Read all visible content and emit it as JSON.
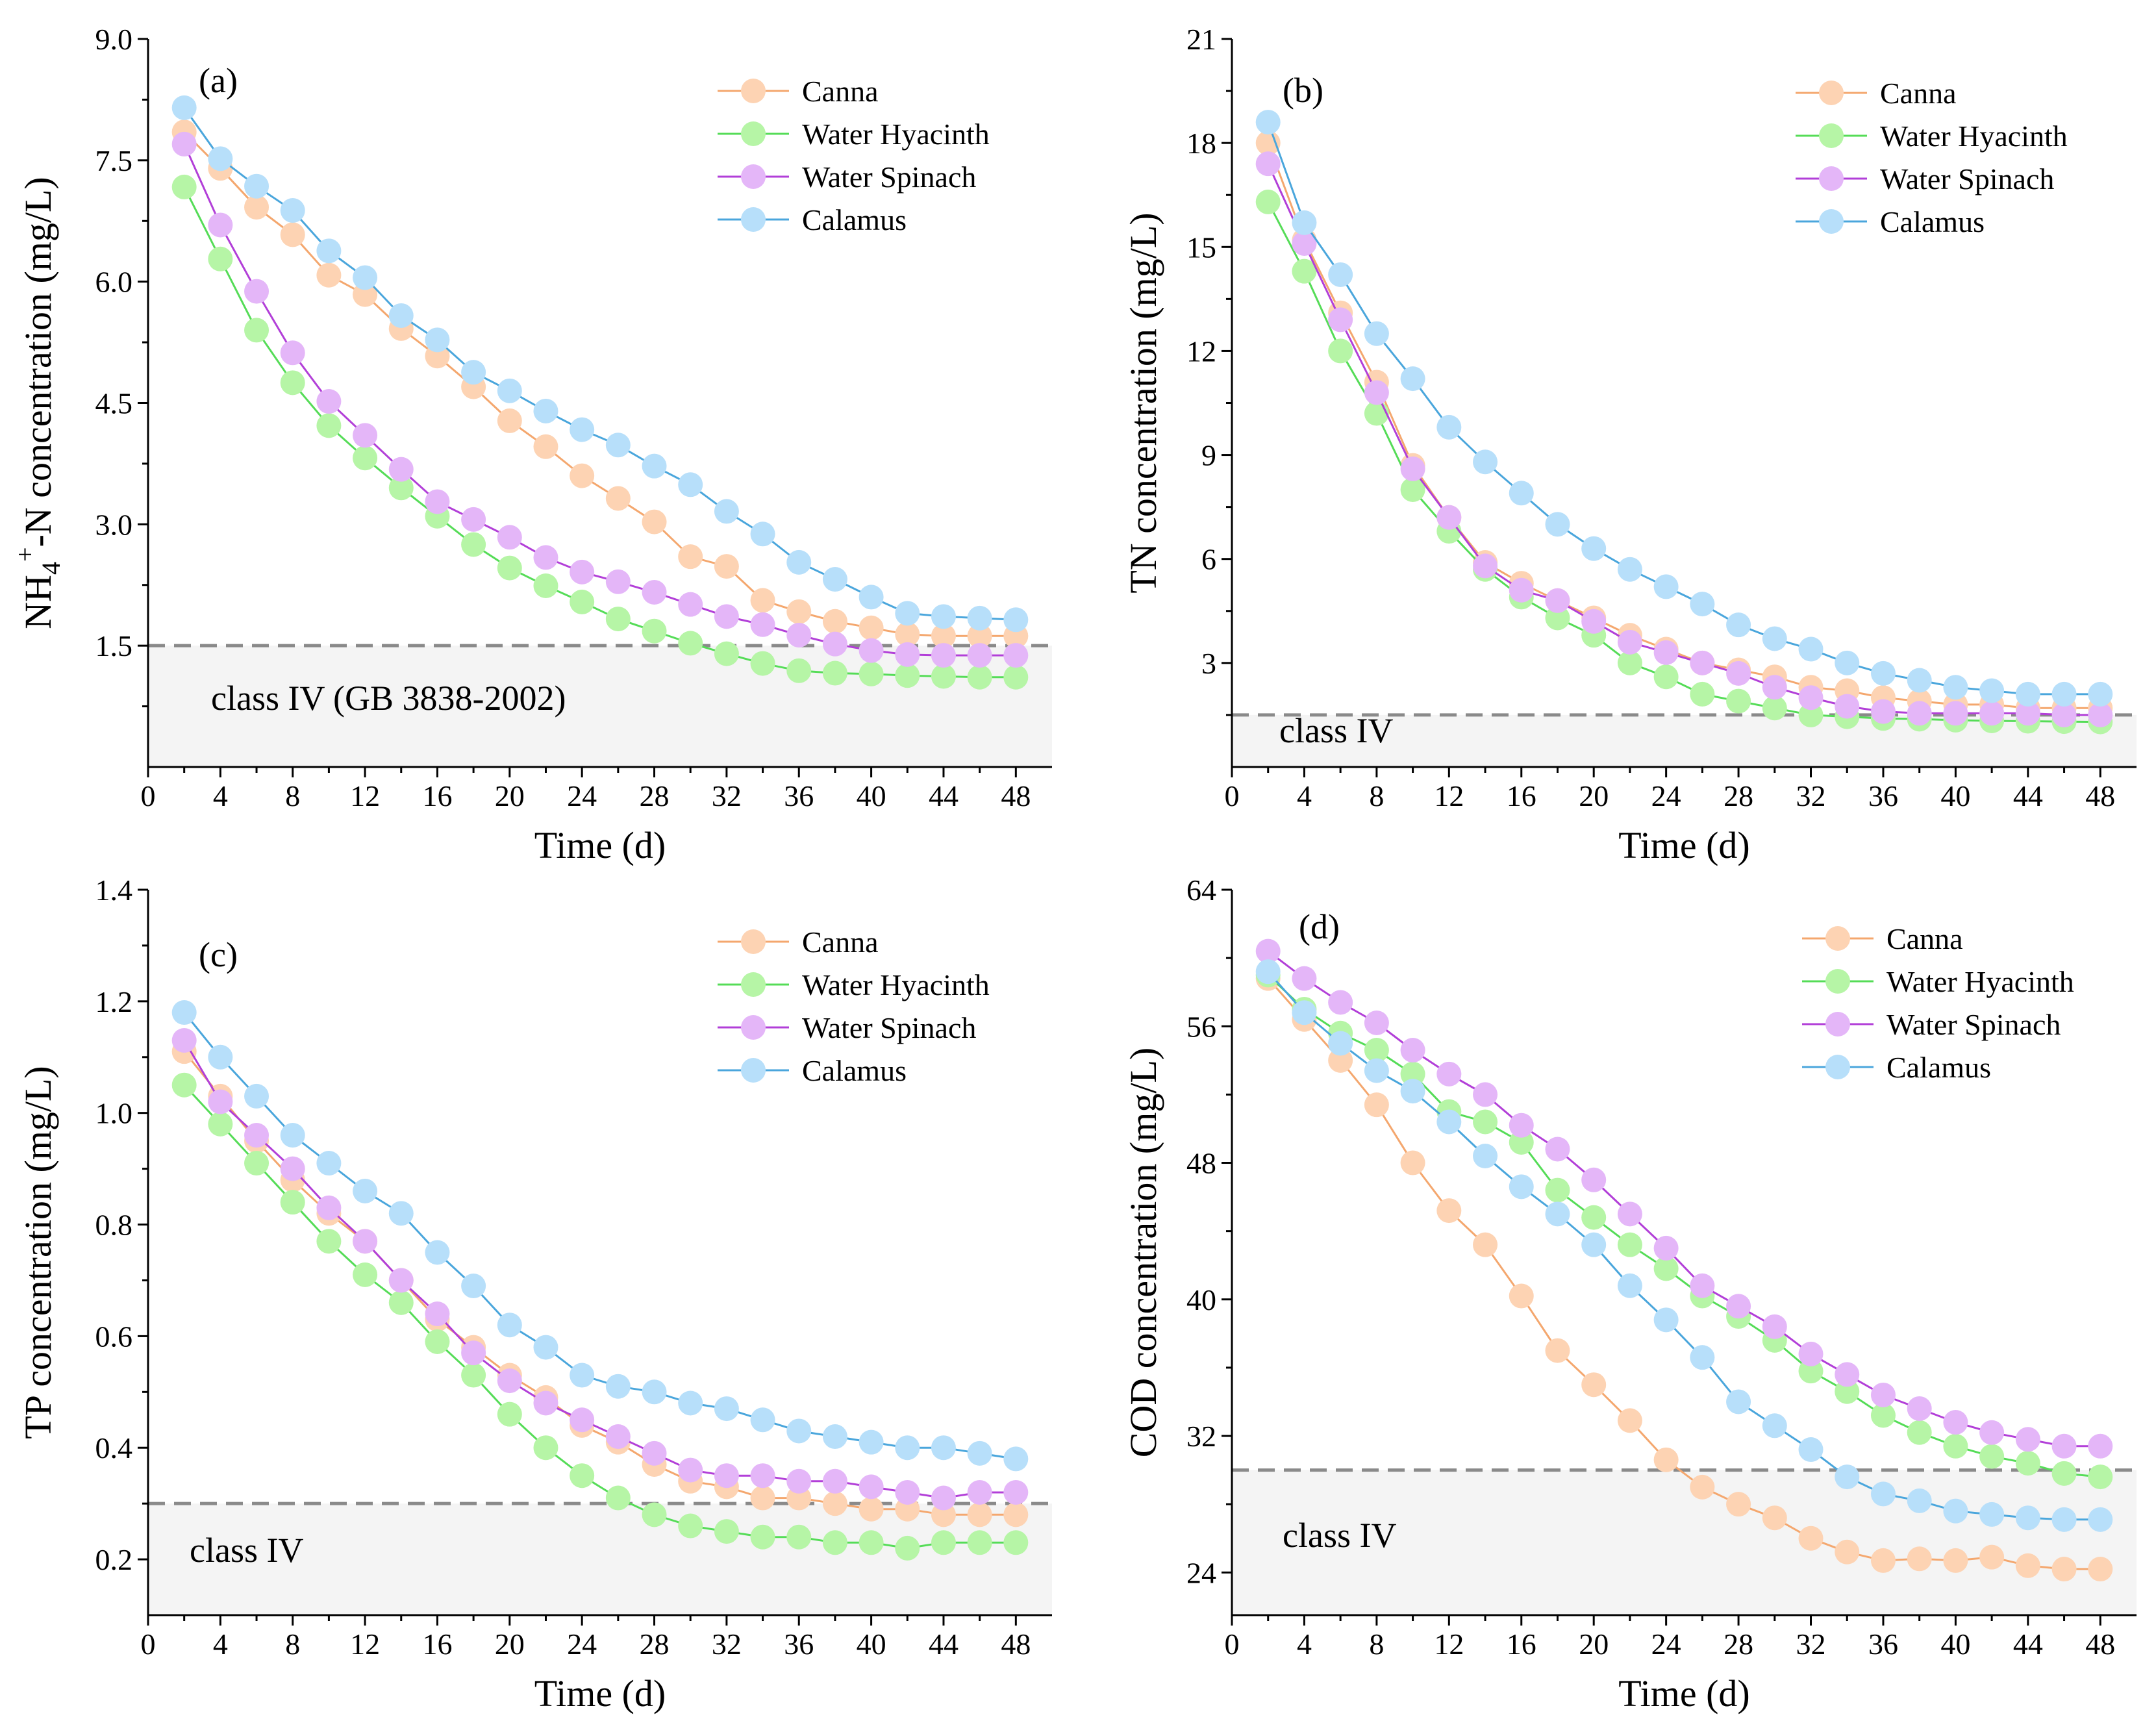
{
  "chart_data": [
    {
      "type": "line",
      "panel_label": "(a)",
      "ylabel_parts": {
        "main": "NH",
        "sub": "4",
        "sup": "+",
        "rest": "-N concentration (mg/L)"
      },
      "xlabel": "Time (d)",
      "xlim": [
        0,
        50
      ],
      "ylim": [
        0,
        9.0
      ],
      "xticks": [
        0,
        4,
        8,
        12,
        16,
        20,
        24,
        28,
        32,
        36,
        40,
        44,
        48
      ],
      "yticks": [
        "1.5",
        "3.0",
        "4.5",
        "6.0",
        "7.5",
        "9.0"
      ],
      "threshold": 1.5,
      "threshold_label": "class IV (GB 3838-2002)",
      "legend_position": "top-right",
      "x": [
        2,
        4,
        6,
        8,
        10,
        12,
        14,
        16,
        18,
        20,
        22,
        24,
        26,
        28,
        30,
        32,
        34,
        36,
        38,
        40,
        42,
        44,
        46,
        48
      ],
      "series": [
        {
          "name": "Canna",
          "values": [
            7.85,
            7.4,
            6.92,
            6.58,
            6.08,
            5.84,
            5.42,
            5.08,
            4.7,
            4.28,
            3.96,
            3.6,
            3.32,
            3.03,
            2.6,
            2.48,
            2.06,
            1.92,
            1.8,
            1.72,
            1.64,
            1.62,
            1.62,
            1.62
          ]
        },
        {
          "name": "Water Hyacinth",
          "values": [
            7.17,
            6.28,
            5.4,
            4.75,
            4.22,
            3.82,
            3.45,
            3.1,
            2.75,
            2.46,
            2.24,
            2.04,
            1.83,
            1.68,
            1.53,
            1.4,
            1.28,
            1.19,
            1.16,
            1.15,
            1.13,
            1.12,
            1.11,
            1.11
          ]
        },
        {
          "name": "Water Spinach",
          "values": [
            7.7,
            6.7,
            5.88,
            5.12,
            4.52,
            4.1,
            3.68,
            3.28,
            3.06,
            2.84,
            2.59,
            2.41,
            2.29,
            2.16,
            2.01,
            1.86,
            1.76,
            1.63,
            1.52,
            1.44,
            1.39,
            1.38,
            1.38,
            1.38
          ]
        },
        {
          "name": "Calamus",
          "values": [
            8.15,
            7.52,
            7.18,
            6.88,
            6.38,
            6.05,
            5.58,
            5.28,
            4.88,
            4.65,
            4.4,
            4.17,
            3.98,
            3.72,
            3.49,
            3.16,
            2.88,
            2.53,
            2.32,
            2.1,
            1.9,
            1.86,
            1.84,
            1.82
          ]
        }
      ]
    },
    {
      "type": "line",
      "panel_label": "(b)",
      "ylabel": "TN concentration (mg/L)",
      "xlabel": "Time (d)",
      "xlim": [
        0,
        50
      ],
      "ylim": [
        0,
        21
      ],
      "xticks": [
        0,
        4,
        8,
        12,
        16,
        20,
        24,
        28,
        32,
        36,
        40,
        44,
        48
      ],
      "yticks": [
        "3",
        "6",
        "9",
        "12",
        "15",
        "18",
        "21"
      ],
      "threshold": 1.5,
      "threshold_label": "class IV",
      "legend_position": "top-right",
      "x": [
        2,
        4,
        6,
        8,
        10,
        12,
        14,
        16,
        18,
        20,
        22,
        24,
        26,
        28,
        30,
        32,
        34,
        36,
        38,
        40,
        42,
        44,
        46,
        48
      ],
      "series": [
        {
          "name": "Canna",
          "values": [
            18.0,
            15.2,
            13.1,
            11.1,
            8.7,
            7.2,
            5.9,
            5.3,
            4.8,
            4.3,
            3.8,
            3.4,
            3.0,
            2.8,
            2.6,
            2.3,
            2.2,
            2.0,
            1.9,
            1.8,
            1.8,
            1.7,
            1.7,
            1.7
          ]
        },
        {
          "name": "Water Hyacinth",
          "values": [
            16.3,
            14.3,
            12.0,
            10.2,
            8.0,
            6.8,
            5.7,
            4.9,
            4.3,
            3.8,
            3.0,
            2.6,
            2.1,
            1.9,
            1.7,
            1.5,
            1.45,
            1.4,
            1.38,
            1.35,
            1.33,
            1.32,
            1.31,
            1.3
          ]
        },
        {
          "name": "Water Spinach",
          "values": [
            17.4,
            15.1,
            12.9,
            10.8,
            8.6,
            7.2,
            5.8,
            5.1,
            4.8,
            4.2,
            3.6,
            3.3,
            3.0,
            2.7,
            2.3,
            2.0,
            1.75,
            1.6,
            1.55,
            1.55,
            1.55,
            1.55,
            1.5,
            1.5
          ]
        },
        {
          "name": "Calamus",
          "values": [
            18.6,
            15.7,
            14.2,
            12.5,
            11.2,
            9.8,
            8.8,
            7.9,
            7.0,
            6.3,
            5.7,
            5.2,
            4.7,
            4.1,
            3.7,
            3.4,
            3.0,
            2.7,
            2.5,
            2.3,
            2.2,
            2.1,
            2.1,
            2.1
          ]
        }
      ]
    },
    {
      "type": "line",
      "panel_label": "(c)",
      "ylabel": "TP concentration (mg/L)",
      "xlabel": "Time (d)",
      "xlim": [
        0,
        50
      ],
      "ylim": [
        0.1,
        1.4
      ],
      "xticks": [
        0,
        4,
        8,
        12,
        16,
        20,
        24,
        28,
        32,
        36,
        40,
        44,
        48
      ],
      "yticks": [
        "0.2",
        "0.4",
        "0.6",
        "0.8",
        "1.0",
        "1.2",
        "1.4"
      ],
      "threshold": 0.3,
      "threshold_label": "class IV",
      "legend_position": "top-right",
      "x": [
        2,
        4,
        6,
        8,
        10,
        12,
        14,
        16,
        18,
        20,
        22,
        24,
        26,
        28,
        30,
        32,
        34,
        36,
        38,
        40,
        42,
        44,
        46,
        48
      ],
      "series": [
        {
          "name": "Canna",
          "values": [
            1.11,
            1.03,
            0.95,
            0.88,
            0.82,
            0.77,
            0.7,
            0.63,
            0.58,
            0.53,
            0.49,
            0.44,
            0.41,
            0.37,
            0.34,
            0.33,
            0.31,
            0.31,
            0.3,
            0.29,
            0.29,
            0.28,
            0.28,
            0.28
          ]
        },
        {
          "name": "Water Hyacinth",
          "values": [
            1.05,
            0.98,
            0.91,
            0.84,
            0.77,
            0.71,
            0.66,
            0.59,
            0.53,
            0.46,
            0.4,
            0.35,
            0.31,
            0.28,
            0.26,
            0.25,
            0.24,
            0.24,
            0.23,
            0.23,
            0.22,
            0.23,
            0.23,
            0.23
          ]
        },
        {
          "name": "Water Spinach",
          "values": [
            1.13,
            1.02,
            0.96,
            0.9,
            0.83,
            0.77,
            0.7,
            0.64,
            0.57,
            0.52,
            0.48,
            0.45,
            0.42,
            0.39,
            0.36,
            0.35,
            0.35,
            0.34,
            0.34,
            0.33,
            0.32,
            0.31,
            0.32,
            0.32
          ]
        },
        {
          "name": "Calamus",
          "values": [
            1.18,
            1.1,
            1.03,
            0.96,
            0.91,
            0.86,
            0.82,
            0.75,
            0.69,
            0.62,
            0.58,
            0.53,
            0.51,
            0.5,
            0.48,
            0.47,
            0.45,
            0.43,
            0.42,
            0.41,
            0.4,
            0.4,
            0.39,
            0.38
          ]
        }
      ]
    },
    {
      "type": "line",
      "panel_label": "(d)",
      "ylabel": "COD concentration (mg/L)",
      "xlabel": "Time (d)",
      "xlim": [
        0,
        50
      ],
      "ylim": [
        21.5,
        64
      ],
      "xticks": [
        0,
        4,
        8,
        12,
        16,
        20,
        24,
        28,
        32,
        36,
        40,
        44,
        48
      ],
      "yticks": [
        "24",
        "32",
        "40",
        "48",
        "56",
        "64"
      ],
      "threshold": 30,
      "threshold_label": "class IV",
      "legend_position": "top-right",
      "x": [
        2,
        4,
        6,
        8,
        10,
        12,
        14,
        16,
        18,
        20,
        22,
        24,
        26,
        28,
        30,
        32,
        34,
        36,
        38,
        40,
        42,
        44,
        46,
        48
      ],
      "series": [
        {
          "name": "Canna",
          "values": [
            58.8,
            56.4,
            54.0,
            51.4,
            48.0,
            45.2,
            43.2,
            40.2,
            37.0,
            35.0,
            32.9,
            30.6,
            29.0,
            28.0,
            27.2,
            26.0,
            25.2,
            24.7,
            24.8,
            24.7,
            24.9,
            24.4,
            24.2,
            24.2
          ]
        },
        {
          "name": "Water Hyacinth",
          "values": [
            59.0,
            57.0,
            55.6,
            54.6,
            53.2,
            51.0,
            50.4,
            49.2,
            46.4,
            44.8,
            43.2,
            41.8,
            40.2,
            39.0,
            37.6,
            35.8,
            34.6,
            33.2,
            32.2,
            31.4,
            30.8,
            30.4,
            29.8,
            29.6
          ]
        },
        {
          "name": "Water Spinach",
          "values": [
            60.4,
            58.8,
            57.4,
            56.2,
            54.6,
            53.2,
            52.0,
            50.2,
            48.8,
            47.0,
            45.0,
            43.0,
            40.8,
            39.6,
            38.4,
            36.8,
            35.6,
            34.4,
            33.6,
            32.8,
            32.2,
            31.8,
            31.4,
            31.4
          ]
        },
        {
          "name": "Calamus",
          "values": [
            59.2,
            56.8,
            55.0,
            53.4,
            52.2,
            50.4,
            48.4,
            46.6,
            45.0,
            43.2,
            40.8,
            38.8,
            36.6,
            34.0,
            32.6,
            31.2,
            29.6,
            28.6,
            28.2,
            27.6,
            27.4,
            27.2,
            27.1,
            27.1
          ]
        }
      ]
    }
  ],
  "series_colors": {
    "Canna": {
      "line": "#f4a76e",
      "marker": "#fdd3b3"
    },
    "Water Hyacinth": {
      "line": "#55dc57",
      "marker": "#b6f5a6"
    },
    "Water Spinach": {
      "line": "#b23fd8",
      "marker": "#e4b6f8"
    },
    "Calamus": {
      "line": "#4aa6dc",
      "marker": "#b7dffa"
    }
  },
  "threshold_color": "#8a8a8a",
  "threshold_fill": "#f4f4f4"
}
